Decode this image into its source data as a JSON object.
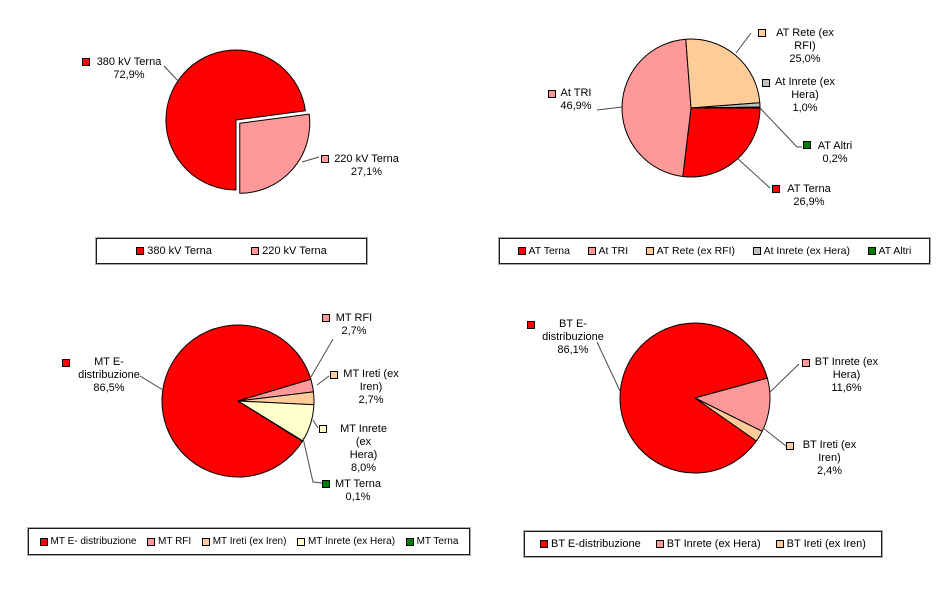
{
  "page": {
    "background": "#FFFFFF",
    "title": ""
  },
  "chart_data": [
    {
      "type": "pie",
      "title": "",
      "legend_position": "bottom",
      "start_angle_deg": 180,
      "slices": [
        {
          "label": "380 kV Terna",
          "value": 72.9,
          "pct_label": "72,9%",
          "color": "#FF0000",
          "exploded": false
        },
        {
          "label": "220 kV Terna",
          "value": 27.1,
          "pct_label": "27,1%",
          "color": "#FF9999",
          "exploded": true
        }
      ],
      "legend": [
        "380 kV Terna",
        "220 kV Terna"
      ],
      "callouts": [
        {
          "lines": [
            "380 kV Terna",
            "72,9%"
          ]
        },
        {
          "lines": [
            "220 kV Terna",
            "27,1%"
          ]
        }
      ]
    },
    {
      "type": "pie",
      "title": "",
      "legend_position": "bottom",
      "start_angle_deg": 90,
      "slices": [
        {
          "label": "AT Terna",
          "value": 26.9,
          "pct_label": "26,9%",
          "color": "#FF0000",
          "exploded": false
        },
        {
          "label": "At TRI",
          "value": 46.9,
          "pct_label": "46,9%",
          "color": "#FF9999",
          "exploded": false
        },
        {
          "label": "AT Rete (ex RFI)",
          "value": 25.0,
          "pct_label": "25,0%",
          "color": "#FFCC99",
          "exploded": false
        },
        {
          "label": "At Inrete (ex Hera)",
          "value": 1.0,
          "pct_label": "1,0%",
          "color": "#C0C0C0",
          "exploded": false
        },
        {
          "label": "AT Altri",
          "value": 0.2,
          "pct_label": "0,2%",
          "color": "#008000",
          "exploded": false
        }
      ],
      "legend": [
        "AT Terna",
        "At TRI",
        "AT Rete (ex RFI)",
        "At Inrete (ex Hera)",
        "AT Altri"
      ],
      "callouts": [
        {
          "lines": [
            "AT Terna",
            "26,9%"
          ]
        },
        {
          "lines": [
            "At TRI",
            "46,9%"
          ]
        },
        {
          "lines": [
            "AT Rete (ex",
            "RFI)",
            "25,0%"
          ]
        },
        {
          "lines": [
            "At Inrete (ex",
            "Hera)",
            "1,0%"
          ]
        },
        {
          "lines": [
            "AT Altri",
            "0,2%"
          ]
        }
      ]
    },
    {
      "type": "pie",
      "title": "",
      "legend_position": "bottom",
      "start_angle_deg": 122,
      "slices": [
        {
          "label": "MT E-distribuzione",
          "value": 86.5,
          "pct_label": "86,5%",
          "color": "#FF0000",
          "exploded": false
        },
        {
          "label": "MT RFI",
          "value": 2.7,
          "pct_label": "2,7%",
          "color": "#FF9999",
          "exploded": false
        },
        {
          "label": "MT Ireti (ex Iren)",
          "value": 2.7,
          "pct_label": "2,7%",
          "color": "#FFCC99",
          "exploded": false
        },
        {
          "label": "MT Inrete (ex Hera)",
          "value": 8.0,
          "pct_label": "8,0%",
          "color": "#FFFFCC",
          "exploded": false
        },
        {
          "label": "MT Terna",
          "value": 0.1,
          "pct_label": "0,1%",
          "color": "#008000",
          "exploded": false
        }
      ],
      "legend": [
        "MT E- distribuzione",
        "MT RFI",
        "MT Ireti (ex Iren)",
        "MT Inrete (ex Hera)",
        "MT Terna"
      ],
      "callouts": [
        {
          "lines": [
            "MT E-",
            "distribuzione",
            "86,5%"
          ]
        },
        {
          "lines": [
            "MT RFI",
            "2,7%"
          ]
        },
        {
          "lines": [
            "MT Ireti (ex",
            "Iren)",
            "2,7%"
          ]
        },
        {
          "lines": [
            "MT Inrete (ex",
            "Hera)",
            "8,0%"
          ]
        },
        {
          "lines": [
            "MT Terna",
            "0,1%"
          ]
        }
      ]
    },
    {
      "type": "pie",
      "title": "",
      "legend_position": "bottom",
      "start_angle_deg": 125,
      "slices": [
        {
          "label": "BT E-distribuzione",
          "value": 86.1,
          "pct_label": "86,1%",
          "color": "#FF0000",
          "exploded": false
        },
        {
          "label": "BT Inrete (ex Hera)",
          "value": 11.6,
          "pct_label": "11,6%",
          "color": "#FF9999",
          "exploded": false
        },
        {
          "label": "BT Ireti (ex Iren)",
          "value": 2.4,
          "pct_label": "2,4%",
          "color": "#FFCC99",
          "exploded": false
        }
      ],
      "legend": [
        "BT E-distribuzione",
        "BT Inrete (ex Hera)",
        "BT Ireti (ex Iren)"
      ],
      "callouts": [
        {
          "lines": [
            "BT E-",
            "distribuzione",
            "86,1%"
          ]
        },
        {
          "lines": [
            "BT Inrete (ex",
            "Hera)",
            "11,6%"
          ]
        },
        {
          "lines": [
            "BT Ireti (ex",
            "Iren)",
            "2,4%"
          ]
        }
      ]
    }
  ]
}
